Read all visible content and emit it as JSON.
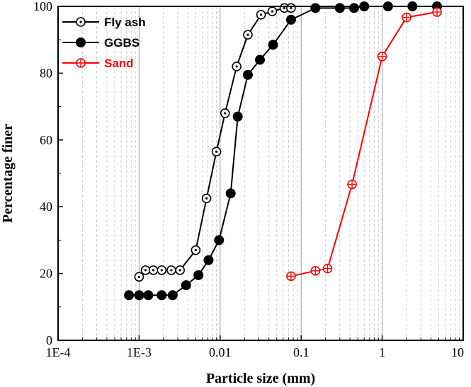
{
  "chart_data": {
    "type": "line",
    "xlabel": "Particle size (mm)",
    "ylabel": "Percentage finer",
    "x_scale": "log",
    "xlim": [
      0.0001,
      10
    ],
    "ylim": [
      0,
      100
    ],
    "x_ticks": [
      0.0001,
      0.001,
      0.01,
      0.1,
      1,
      10
    ],
    "x_tick_labels": [
      "1E-4",
      "1E-3",
      "0.01",
      "0.1",
      "1",
      "10"
    ],
    "y_ticks": [
      0,
      20,
      40,
      60,
      80,
      100
    ],
    "y_tick_labels": [
      "0",
      "20",
      "40",
      "60",
      "80",
      "100"
    ],
    "grid": "vertical major and minor (x)",
    "legend_position": "top-left",
    "series": [
      {
        "name": "Fly ash",
        "color": "#000000",
        "marker": "circle-dot",
        "x": [
          0.001,
          0.0012,
          0.0015,
          0.0019,
          0.0025,
          0.0032,
          0.005,
          0.0068,
          0.009,
          0.0115,
          0.016,
          0.022,
          0.032,
          0.044,
          0.062,
          0.075
        ],
        "y": [
          19,
          21,
          21,
          21,
          21,
          21,
          27,
          42.5,
          56.5,
          68,
          82,
          91.5,
          97.5,
          98.5,
          99.5,
          99.5
        ]
      },
      {
        "name": "GGBS",
        "color": "#000000",
        "marker": "filled-circle",
        "x": [
          0.00075,
          0.001,
          0.0013,
          0.0019,
          0.0026,
          0.0038,
          0.0054,
          0.0072,
          0.0097,
          0.0135,
          0.0165,
          0.022,
          0.031,
          0.045,
          0.075,
          0.15,
          0.3,
          0.45,
          0.6,
          1.18,
          2.36,
          4.75
        ],
        "y": [
          13.5,
          13.5,
          13.5,
          13.5,
          13.5,
          16.5,
          19.5,
          24,
          30,
          44,
          67,
          79.5,
          84,
          88.5,
          96,
          99.5,
          99.5,
          99.5,
          100,
          100,
          100,
          100
        ]
      },
      {
        "name": "Sand",
        "color": "#ff0000",
        "marker": "circle-cross",
        "x": [
          0.075,
          0.15,
          0.212,
          0.425,
          1,
          2,
          4.75
        ],
        "y": [
          19.2,
          20.8,
          21.5,
          46.7,
          85,
          96.7,
          98.3
        ]
      }
    ]
  }
}
